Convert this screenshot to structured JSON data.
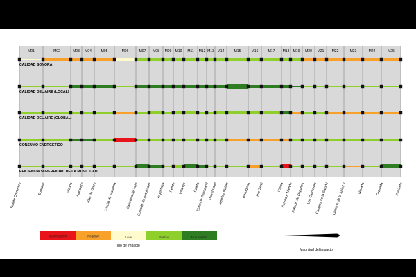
{
  "chart_data": {
    "type": "heatmap",
    "segments": [
      {
        "id": "M01",
        "start": 28,
        "end": 62
      },
      {
        "id": "M02",
        "start": 62,
        "end": 102
      },
      {
        "id": "M03",
        "start": 102,
        "end": 118
      },
      {
        "id": "M04",
        "start": 118,
        "end": 136
      },
      {
        "id": "M05",
        "start": 136,
        "end": 165
      },
      {
        "id": "M06",
        "start": 165,
        "end": 196
      },
      {
        "id": "M07",
        "start": 196,
        "end": 215
      },
      {
        "id": "M08",
        "start": 215,
        "end": 235
      },
      {
        "id": "M09",
        "start": 235,
        "end": 250
      },
      {
        "id": "M10",
        "start": 250,
        "end": 265
      },
      {
        "id": "M11",
        "start": 265,
        "end": 285
      },
      {
        "id": "M12",
        "start": 285,
        "end": 298
      },
      {
        "id": "M13",
        "start": 298,
        "end": 310
      },
      {
        "id": "M14",
        "start": 310,
        "end": 327
      },
      {
        "id": "M15",
        "start": 327,
        "end": 358
      },
      {
        "id": "M16",
        "start": 358,
        "end": 377
      },
      {
        "id": "M17",
        "start": 377,
        "end": 406
      },
      {
        "id": "M18",
        "start": 406,
        "end": 419
      },
      {
        "id": "M19",
        "start": 419,
        "end": 436
      },
      {
        "id": "M20",
        "start": 436,
        "end": 454
      },
      {
        "id": "M21",
        "start": 454,
        "end": 471
      },
      {
        "id": "M22",
        "start": 471,
        "end": 496
      },
      {
        "id": "M23",
        "start": 496,
        "end": 523
      },
      {
        "id": "M24",
        "start": 523,
        "end": 550
      },
      {
        "id": "M25",
        "start": 550,
        "end": 578
      }
    ],
    "rows": [
      {
        "label": "CALIDAD SONORA",
        "impacts": [
          "slight",
          "neg",
          "neg",
          "neg",
          "neg",
          "slight",
          "pos",
          "pos",
          "pos",
          "pos",
          "pos",
          "pos",
          "pos",
          "pos",
          "pos",
          "pos",
          "pos",
          "pos",
          "pos",
          "neg",
          "neg",
          "neg",
          "neg",
          "neg",
          "neg"
        ],
        "magnitude": [
          1,
          2,
          2,
          2,
          2,
          2,
          2,
          2,
          2,
          2,
          2,
          2,
          2,
          2,
          2,
          2,
          2,
          2,
          2,
          2,
          2,
          2,
          2,
          2,
          2
        ]
      },
      {
        "label": "CALIDAD DEL AIRE (LOCAL)",
        "impacts": [
          "pos",
          "pos",
          "vpos",
          "vpos",
          "vpos",
          "pos",
          "vpos",
          "vpos",
          "vpos",
          "vpos",
          "vpos",
          "vpos",
          "vpos",
          "vpos",
          "vpos",
          "vpos",
          "vpos",
          "vpos",
          "vpos",
          "pos",
          "pos",
          "pos",
          "pos",
          "pos",
          "pos"
        ],
        "magnitude": [
          1,
          1,
          2,
          2,
          2,
          1,
          2,
          2,
          2,
          2,
          2,
          2,
          2,
          2,
          3,
          2,
          2,
          2,
          1,
          1,
          1,
          1,
          1,
          1,
          1
        ]
      },
      {
        "label": "CALIDAD DEL AIRE (GLOBAL)",
        "impacts": [
          "pos",
          "pos",
          "pos",
          "pos",
          "pos",
          "neg",
          "pos",
          "pos",
          "pos",
          "pos",
          "pos",
          "pos",
          "pos",
          "pos",
          "pos",
          "pos",
          "pos",
          "vpos",
          "neg",
          "pos",
          "pos",
          "neg",
          "neg",
          "neg",
          "neg"
        ],
        "magnitude": [
          1,
          1,
          1,
          1,
          1,
          1,
          1,
          2,
          1,
          2,
          2,
          1,
          1,
          2,
          2,
          2,
          2,
          2,
          1,
          1,
          1,
          1,
          1,
          1,
          1
        ]
      },
      {
        "label": "CONSUMO ENERGÉTICO",
        "impacts": [
          "pos",
          "pos",
          "vpos",
          "vpos",
          "pos",
          "vneg",
          "pos",
          "pos",
          "pos",
          "pos",
          "pos",
          "pos",
          "pos",
          "pos",
          "neg",
          "neg",
          "neg",
          "neg",
          "pos",
          "pos",
          "pos",
          "pos",
          "pos",
          "pos",
          "pos"
        ],
        "magnitude": [
          1,
          1,
          2,
          2,
          1,
          3,
          2,
          2,
          2,
          2,
          2,
          1,
          2,
          2,
          2,
          2,
          2,
          2,
          1,
          1,
          1,
          1,
          1,
          1,
          1
        ]
      },
      {
        "label": "EFICIENCIA SUPERFICIAL DE LA MOVILIDAD",
        "impacts": [
          "pos",
          "pos",
          "pos",
          "pos",
          "pos",
          "pos",
          "vpos",
          "vpos",
          "pos",
          "pos",
          "vpos",
          "vpos",
          "pos",
          "pos",
          "pos",
          "neg",
          "pos",
          "vneg",
          "pos",
          "pos",
          "pos",
          "pos",
          "neg",
          "pos",
          "vpos"
        ],
        "magnitude": [
          1,
          1,
          1,
          1,
          1,
          1,
          3,
          2,
          1,
          2,
          3,
          2,
          1,
          1,
          1,
          2,
          1,
          3,
          1,
          1,
          1,
          1,
          1,
          1,
          3
        ]
      }
    ],
    "stations": [
      {
        "name": "Jacinto Cornerero",
        "pos": 28
      },
      {
        "name": "Suncasti",
        "pos": 62
      },
      {
        "name": "Vicuña",
        "pos": 102
      },
      {
        "name": "Amboatro",
        "pos": 118
      },
      {
        "name": "Blas de Otero",
        "pos": 136
      },
      {
        "name": "Cercilo de Marsena",
        "pos": 165
      },
      {
        "name": "Carretera de Jaén",
        "pos": 196
      },
      {
        "name": "Estación de Autobuses",
        "pos": 215
      },
      {
        "name": "Argentinita",
        "pos": 235
      },
      {
        "name": "Pemte",
        "pos": 250
      },
      {
        "name": "Villarejo",
        "pos": 265
      },
      {
        "name": "Caleta",
        "pos": 285
      },
      {
        "name": "Estación Ferrocarril",
        "pos": 298
      },
      {
        "name": "Universidad",
        "pos": 310
      },
      {
        "name": "Méndez Núñez",
        "pos": 327
      },
      {
        "name": "Recogidas",
        "pos": 358
      },
      {
        "name": "Río Genil",
        "pos": 377
      },
      {
        "name": "Hípica",
        "pos": 406
      },
      {
        "name": "Salvador Allende",
        "pos": 419
      },
      {
        "name": "Palacio de Deportes",
        "pos": 436
      },
      {
        "name": "Los Carmenes",
        "pos": 454
      },
      {
        "name": "Campus de la Salud I",
        "pos": 471
      },
      {
        "name": "Campus de la Salud II",
        "pos": 496
      },
      {
        "name": "Nevada",
        "pos": 523
      },
      {
        "name": "Granada",
        "pos": 550
      },
      {
        "name": "Poniente",
        "pos": 578
      }
    ],
    "legend": {
      "title": "Tipo de impacto",
      "items": [
        {
          "key": "vneg",
          "symbol": "",
          "label": "Muy negativo",
          "color": "#e8141a"
        },
        {
          "key": "neg",
          "symbol": "",
          "label": "Negativo",
          "color": "#f7a02a"
        },
        {
          "key": "slight",
          "symbol": "+ -",
          "label": "Leve",
          "color": "#fffbcc"
        },
        {
          "key": "pos",
          "symbol": "+",
          "label": "Positivo",
          "color": "#8fcf2c"
        },
        {
          "key": "vpos",
          "symbol": "+ +",
          "label": "Muy positivo",
          "color": "#2e7d22"
        }
      ]
    },
    "magnitude_legend": {
      "title": "Magnitud del impacto"
    }
  },
  "colors": {
    "vneg": "#e8141a",
    "neg": "#f7a02a",
    "slight": "#fffbcc",
    "pos": "#8fcf2c",
    "vpos": "#2e7d22",
    "panel": "#d9d9d9",
    "marker": "#111111"
  }
}
